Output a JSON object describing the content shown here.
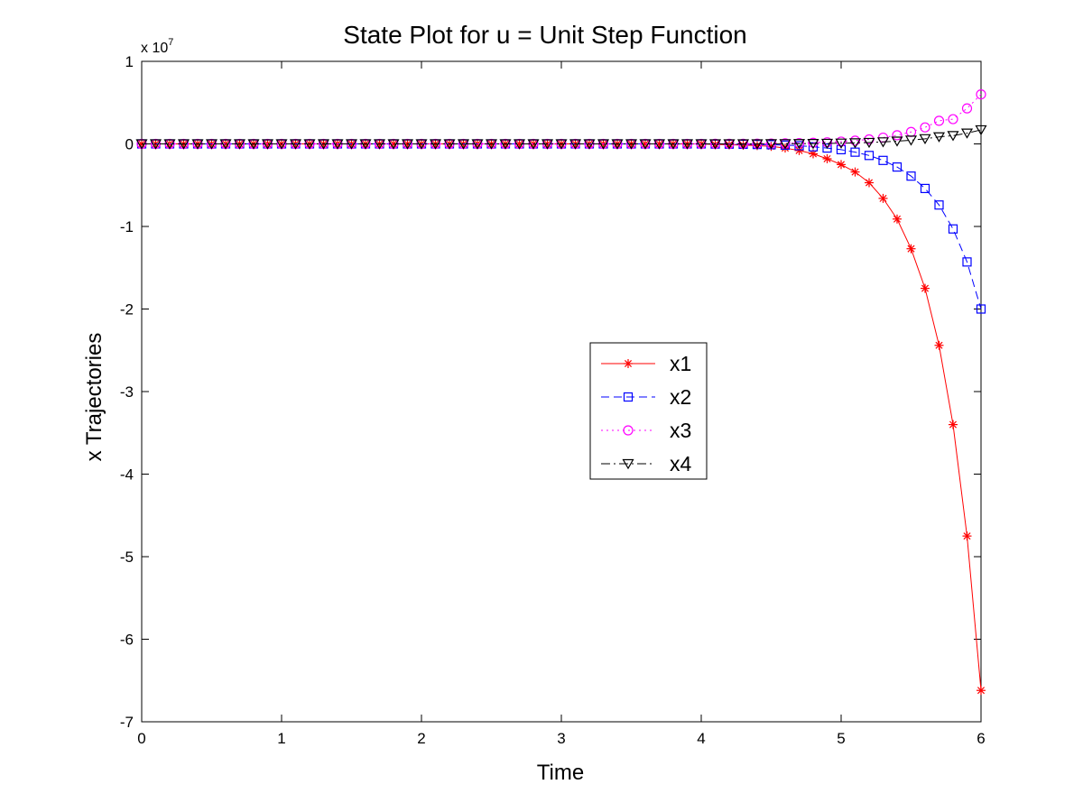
{
  "chart_data": {
    "type": "line",
    "title": "State Plot for u = Unit Step Function",
    "xlabel": "Time",
    "ylabel": "x Trajectories",
    "y_multiplier_base": "x 10",
    "y_multiplier_exp": "7",
    "xlim": [
      0,
      6
    ],
    "ylim": [
      -7,
      1
    ],
    "y_scale_factor": 10000000,
    "xticks": [
      "0",
      "1",
      "2",
      "3",
      "4",
      "5",
      "6"
    ],
    "yticks": [
      "1",
      "0",
      "-1",
      "-2",
      "-3",
      "-4",
      "-5",
      "-6",
      "-7"
    ],
    "grid": false,
    "legend_position": "center-right",
    "x": [
      0,
      0.1,
      0.2,
      0.3,
      0.4,
      0.5,
      0.6,
      0.7,
      0.8,
      0.9,
      1.0,
      1.1,
      1.2,
      1.3,
      1.4,
      1.5,
      1.6,
      1.7,
      1.8,
      1.9,
      2.0,
      2.1,
      2.2,
      2.3,
      2.4,
      2.5,
      2.6,
      2.7,
      2.8,
      2.9,
      3.0,
      3.1,
      3.2,
      3.3,
      3.4,
      3.5,
      3.6,
      3.7,
      3.8,
      3.9,
      4.0,
      4.1,
      4.2,
      4.3,
      4.4,
      4.5,
      4.6,
      4.7,
      4.8,
      4.9,
      5.0,
      5.1,
      5.2,
      5.3,
      5.4,
      5.5,
      5.6,
      5.7,
      5.8,
      5.9,
      6.0
    ],
    "series": [
      {
        "name": "x1",
        "color": "#ff0000",
        "marker": "asterisk",
        "dash": "",
        "values": [
          0,
          0,
          0,
          0,
          0,
          0,
          0,
          0,
          0,
          0,
          0,
          0,
          0,
          0,
          0,
          0,
          0,
          0,
          0,
          0,
          0,
          0,
          0,
          0,
          0,
          0,
          0,
          0,
          0,
          0,
          0,
          0,
          0,
          0,
          0,
          0,
          0,
          0,
          0,
          0,
          0,
          -0.007,
          -0.01,
          -0.015,
          -0.02,
          -0.03,
          -0.05,
          -0.08,
          -0.12,
          -0.18,
          -0.25,
          -0.34,
          -0.47,
          -0.66,
          -0.91,
          -1.27,
          -1.75,
          -2.44,
          -3.4,
          -4.75,
          -6.62
        ]
      },
      {
        "name": "x2",
        "color": "#0000ff",
        "marker": "square",
        "dash": "9,5",
        "values": [
          0,
          0,
          0,
          0,
          0,
          0,
          0,
          0,
          0,
          0,
          0,
          0,
          0,
          0,
          0,
          0,
          0,
          0,
          0,
          0,
          0,
          0,
          0,
          0,
          0,
          0,
          0,
          0,
          0,
          0,
          0,
          0,
          0,
          0,
          0,
          0,
          0,
          0,
          0,
          0,
          0,
          -0.002,
          -0.003,
          -0.005,
          -0.007,
          -0.01,
          -0.015,
          -0.022,
          -0.035,
          -0.05,
          -0.07,
          -0.1,
          -0.14,
          -0.2,
          -0.28,
          -0.39,
          -0.54,
          -0.74,
          -1.03,
          -1.43,
          -2.0
        ]
      },
      {
        "name": "x3",
        "color": "#ff00ff",
        "marker": "circle",
        "dash": "2,4",
        "values": [
          0,
          0,
          0,
          0,
          0,
          0,
          0,
          0,
          0,
          0,
          0,
          0,
          0,
          0,
          0,
          0,
          0,
          0,
          0,
          0,
          0,
          0,
          0,
          0,
          0,
          0,
          0,
          0,
          0,
          0,
          0,
          0,
          0,
          0,
          0,
          0,
          0,
          0,
          0,
          0,
          0,
          0.001,
          0.001,
          0.002,
          0.003,
          0.005,
          0.007,
          0.01,
          0.014,
          0.02,
          0.028,
          0.04,
          0.055,
          0.076,
          0.105,
          0.145,
          0.2,
          0.28,
          0.3,
          0.43,
          0.6
        ]
      },
      {
        "name": "x4",
        "color": "#000000",
        "marker": "triangle-down",
        "dash": "10,4,2,4",
        "values": [
          0,
          0,
          0,
          0,
          0,
          0,
          0,
          0,
          0,
          0,
          0,
          0,
          0,
          0,
          0,
          0,
          0,
          0,
          0,
          0,
          0,
          0,
          0,
          0,
          0,
          0,
          0,
          0,
          0,
          0,
          0,
          0,
          0,
          0,
          0,
          0,
          0,
          0,
          0,
          0,
          0,
          0,
          0,
          0,
          0,
          0.001,
          0.002,
          0.003,
          0.004,
          0.006,
          0.009,
          0.012,
          0.017,
          0.024,
          0.033,
          0.045,
          0.062,
          0.085,
          0.1,
          0.13,
          0.17
        ]
      }
    ]
  }
}
